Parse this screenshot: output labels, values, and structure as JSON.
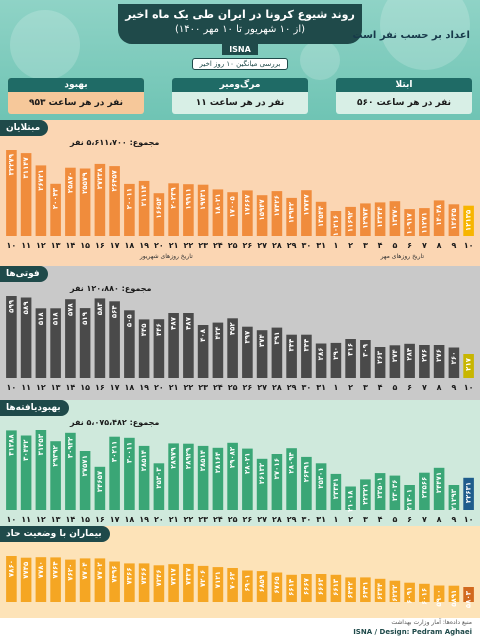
{
  "header": {
    "title": "روند شیوع کرونا در ایران طی یک ماه اخیر",
    "subtitle": "(از ۱۰ شهریور تا ۱۰ مهر ۱۴۰۰)",
    "isna": "ISNA",
    "hourly_label": "اعداد بر حسب نفر است",
    "avg_label": "بررسی میانگین ۱۰ روز اخیر"
  },
  "stats": [
    {
      "name": "بهبود",
      "value": "۹۵۳ نفر در هر ساعت"
    },
    {
      "name": "مرگ‌ومیر",
      "value": "۱۱ نفر در هر ساعت"
    },
    {
      "name": "ابتلا",
      "value": "۵۶۰ نفر در هر ساعت"
    }
  ],
  "x_labels": [
    "۱۰",
    "۱۱",
    "۱۲",
    "۱۳",
    "۱۴",
    "۱۵",
    "۱۶",
    "۱۷",
    "۱۸",
    "۱۹",
    "۲۰",
    "۲۱",
    "۲۲",
    "۲۳",
    "۲۴",
    "۲۵",
    "۲۶",
    "۲۷",
    "۲۸",
    "۲۹",
    "۳۰",
    "۳۱",
    "۱",
    "۲",
    "۳",
    "۴",
    "۵",
    "۶",
    "۷",
    "۸",
    "۹",
    "۱۰"
  ],
  "month_labels": {
    "shahrivar": "تاریخ روزهای شهریور",
    "mehr": "تاریخ روزهای مهر"
  },
  "chart_data": [
    {
      "type": "bar",
      "title": "مبتلایان",
      "total": "مجموع: ۵،۶۱۱،۷۰۰ نفر",
      "color": "#f08c3c",
      "highlight": "#f7b500",
      "bg": "#fbd6b3",
      "values": [
        32279,
        31147,
        26721,
        20043,
        25870,
        25579,
        27238,
        26457,
        20011,
        21114,
        16654,
        20239,
        19911,
        19731,
        18021,
        17005,
        17667,
        15947,
        17426,
        14942,
        17737,
        13544,
        10216,
        11692,
        12973,
        13344,
        13770,
        10917,
        11271,
        14048,
        12635,
        12135
      ],
      "labels": [
        "۳۲۲۷۹",
        "۳۱۱۴۷",
        "۲۶۷۲۱",
        "۲۰۰۴۳",
        "۲۵۸۷۰",
        "۲۵۵۷۹",
        "۲۷۲۳۸",
        "۲۶۴۵۷",
        "۲۰۰۱۱",
        "۲۱۱۱۴",
        "۱۶۶۵۴",
        "۲۰۲۳۹",
        "۱۹۹۱۱",
        "۱۹۷۳۱",
        "۱۸۰۲۱",
        "۱۷۰۰۵",
        "۱۷۶۶۷",
        "۱۵۹۴۷",
        "۱۷۴۲۶",
        "۱۴۹۴۲",
        "۱۷۷۳۷",
        "۱۳۵۴۴",
        "۱۰۲۱۶",
        "۱۱۶۹۲",
        "۱۲۹۷۳",
        "۱۳۳۴۴",
        "۱۳۷۷۰",
        "۱۰۹۱۷",
        "۱۱۲۷۱",
        "۱۴۰۴۸",
        "۱۲۶۳۵",
        "۱۲۱۳۵"
      ]
    },
    {
      "type": "bar",
      "title": "فوتی‌ها",
      "total": "مجموع: ۱۲۰،۸۸۰ نفر",
      "color": "#4a4a4a",
      "highlight": "#c8b600",
      "bg": "#c9c9c9",
      "values": [
        599,
        589,
        518,
        518,
        578,
        519,
        583,
        564,
        505,
        445,
        446,
        487,
        487,
        408,
        424,
        452,
        397,
        374,
        391,
        344,
        344,
        286,
        290,
        316,
        309,
        263,
        274,
        284,
        276,
        276,
        260,
        217
      ],
      "labels": [
        "۵۹۹",
        "۵۸۹",
        "۵۱۸",
        "۵۱۸",
        "۵۷۸",
        "۵۱۹",
        "۵۸۳",
        "۵۶۴",
        "۵۰۵",
        "۴۴۵",
        "۴۴۶",
        "۴۸۷",
        "۴۸۷",
        "۴۰۸",
        "۴۲۴",
        "۴۵۲",
        "۳۹۷",
        "۳۷۴",
        "۳۹۱",
        "۳۴۴",
        "۳۴۴",
        "۲۸۶",
        "۲۹۰",
        "۳۱۶",
        "۳۰۹",
        "۲۶۳",
        "۲۷۴",
        "۲۸۴",
        "۲۷۶",
        "۲۷۶",
        "۲۶۰",
        "۲۱۷"
      ]
    },
    {
      "type": "bar",
      "title": "بهبودیافته‌ها",
      "total": "مجموع: ۵،۰۷۵،۴۸۲ نفر",
      "color": "#3aa676",
      "highlight": "#1f5c8c",
      "bg": "#cfe9dc",
      "values": [
        31388,
        30442,
        31453,
        29392,
        30932,
        27571,
        24657,
        30211,
        30011,
        28514,
        25303,
        28979,
        28929,
        28514,
        28164,
        29082,
        28021,
        26132,
        27016,
        28094,
        26491,
        25301,
        23341,
        21018,
        22321,
        23501,
        23036,
        21301,
        23566,
        24471,
        21293,
        22631
      ],
      "labels": [
        "۳۱۳۸۸",
        "۳۰۴۴۲",
        "۳۱۴۵۳",
        "۲۹۳۹۲",
        "۳۰۹۳۲",
        "۲۷۵۷۱",
        "۲۴۶۵۷",
        "۳۰۲۱۱",
        "۳۰۰۱۱",
        "۲۸۵۱۴",
        "۲۵۳۰۳",
        "۲۸۹۷۹",
        "۲۸۹۲۹",
        "۲۸۵۱۴",
        "۲۸۱۶۴",
        "۲۹۰۸۲",
        "۲۸۰۲۱",
        "۲۶۱۳۲",
        "۲۷۰۱۶",
        "۲۸۰۹۴",
        "۲۶۴۹۱",
        "۲۵۳۰۱",
        "۲۳۳۴۱",
        "۲۱۰۱۸",
        "۲۲۳۲۱",
        "۲۳۵۰۱",
        "۲۳۰۳۶",
        "۲۱۳۰۱",
        "۲۳۵۶۶",
        "۲۴۴۷۱",
        "۲۱۲۹۳",
        "۲۲۶۳۱"
      ]
    },
    {
      "type": "bar",
      "title": "بیماران با وضعیت حاد",
      "total": "",
      "color": "#f5a623",
      "highlight": "#d2691e",
      "bg": "#fde3b8",
      "values": [
        7860,
        7745,
        7780,
        7764,
        7620,
        7704,
        7702,
        7496,
        7366,
        7366,
        7246,
        7317,
        7337,
        7206,
        7121,
        7063,
        6901,
        6859,
        6765,
        6614,
        6667,
        6663,
        6613,
        6442,
        6441,
        6344,
        6222,
        6091,
        6016,
        5900,
        5891,
        5803
      ],
      "labels": [
        "۷۸۶۰",
        "۷۷۴۵",
        "۷۷۸۰",
        "۷۷۶۴",
        "۷۶۲۰",
        "۷۷۰۴",
        "۷۷۰۲",
        "۷۴۹۶",
        "۷۳۶۶",
        "۷۳۶۶",
        "۷۲۴۶",
        "۷۳۱۷",
        "۷۳۳۷",
        "۷۲۰۶",
        "۷۱۲۱",
        "۷۰۶۳",
        "۶۹۰۱",
        "۶۸۵۹",
        "۶۷۶۵",
        "۶۶۱۴",
        "۶۶۶۷",
        "۶۶۶۳",
        "۶۶۱۳",
        "۶۴۴۲",
        "۶۴۴۱",
        "۶۳۴۴",
        "۶۲۲۲",
        "۶۰۹۱",
        "۶۰۱۶",
        "۵۹۰۰",
        "۵۸۹۱",
        "۵۸۰۳"
      ]
    }
  ],
  "footer": {
    "source": "منبع داده‌ها: آمار وزارت بهداشت",
    "credit": "ISNA / Design: Pedram Aghaei"
  }
}
